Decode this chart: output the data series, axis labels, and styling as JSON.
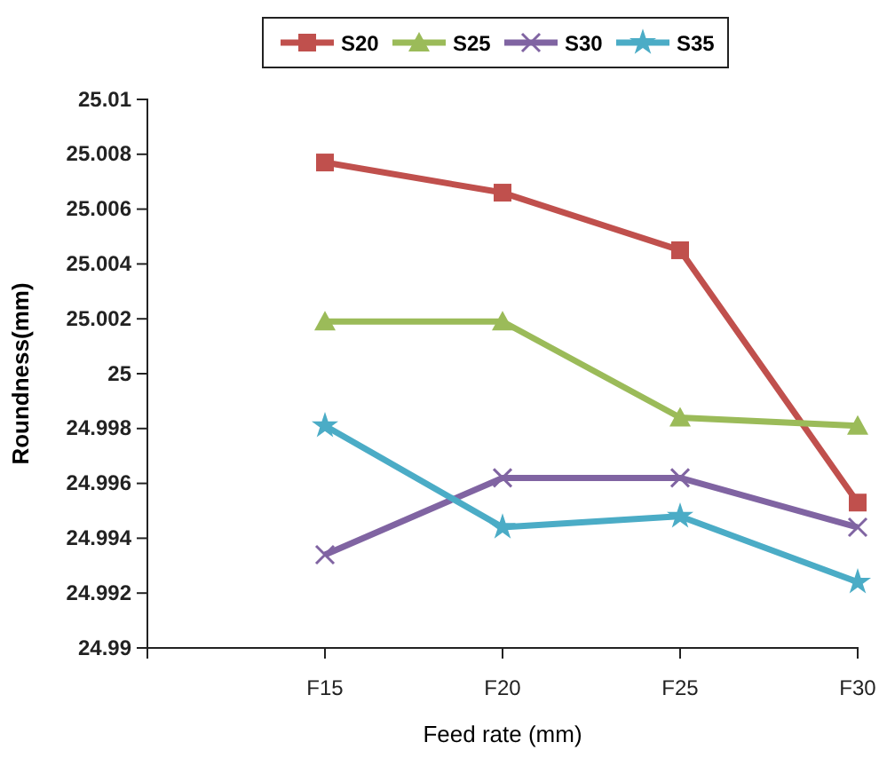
{
  "chart_data": {
    "type": "line",
    "xlabel": "Feed rate (mm)",
    "ylabel": "Roundness(mm)",
    "categories": [
      null,
      "F15",
      "F20",
      "F25",
      "F30"
    ],
    "series": [
      {
        "name": "S20",
        "color": "#c0504d",
        "marker": "square",
        "values": [
          null,
          25.0077,
          25.0066,
          25.0045,
          24.9953
        ]
      },
      {
        "name": "S25",
        "color": "#9bbb59",
        "marker": "triangle",
        "values": [
          null,
          25.0019,
          25.0019,
          24.9984,
          24.9981
        ]
      },
      {
        "name": "S30",
        "color": "#8064a2",
        "marker": "cross",
        "values": [
          null,
          24.9934,
          24.9962,
          24.9962,
          24.9944
        ]
      },
      {
        "name": "S35",
        "color": "#4bacc6",
        "marker": "star",
        "values": [
          null,
          24.9981,
          24.9944,
          24.9948,
          24.9924
        ]
      }
    ],
    "ylim": [
      24.99,
      25.01
    ],
    "yticks": [
      24.99,
      24.992,
      24.994,
      24.996,
      24.998,
      25,
      25.002,
      25.004,
      25.006,
      25.008,
      25.01
    ],
    "grid": false,
    "legend": "top"
  }
}
